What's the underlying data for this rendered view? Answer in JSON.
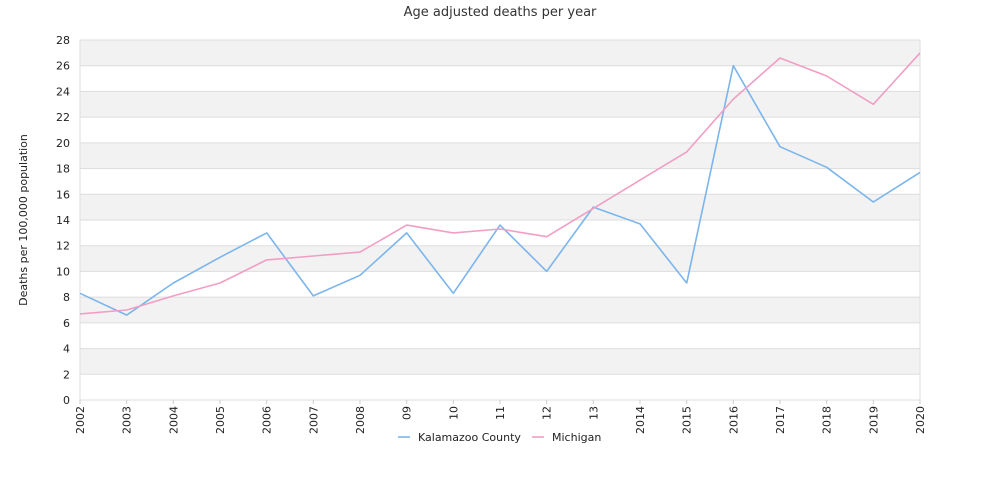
{
  "chart_data": {
    "type": "line",
    "title": "Age adjusted deaths per year",
    "xlabel": "",
    "ylabel": "Deaths per 100,000 population",
    "x": [
      "2002",
      "2003",
      "2004",
      "2005",
      "2006",
      "2007",
      "2008",
      "09",
      "10",
      "11",
      "12",
      "13",
      "2014",
      "2015",
      "2016",
      "2017",
      "2018",
      "2019",
      "2020"
    ],
    "ylim": [
      0,
      28
    ],
    "yticks": [
      0,
      2,
      4,
      6,
      8,
      10,
      12,
      14,
      16,
      18,
      20,
      22,
      24,
      26,
      28
    ],
    "grid": "horizontal bands",
    "legend": "bottom-center",
    "series": [
      {
        "name": "Kalamazoo County",
        "color": "#7cb5ec",
        "values": [
          8.3,
          6.6,
          9.1,
          11.1,
          13.0,
          8.1,
          9.7,
          13.0,
          8.3,
          13.6,
          10.0,
          15.0,
          13.7,
          9.1,
          26.0,
          19.7,
          18.1,
          15.4,
          17.7
        ]
      },
      {
        "name": "Michigan",
        "color": "#f19ec4",
        "values": [
          6.7,
          7.0,
          8.1,
          9.1,
          10.9,
          11.2,
          11.5,
          13.6,
          13.0,
          13.3,
          12.7,
          14.9,
          17.1,
          19.3,
          23.4,
          26.6,
          25.2,
          23.0,
          27.0
        ]
      }
    ]
  }
}
